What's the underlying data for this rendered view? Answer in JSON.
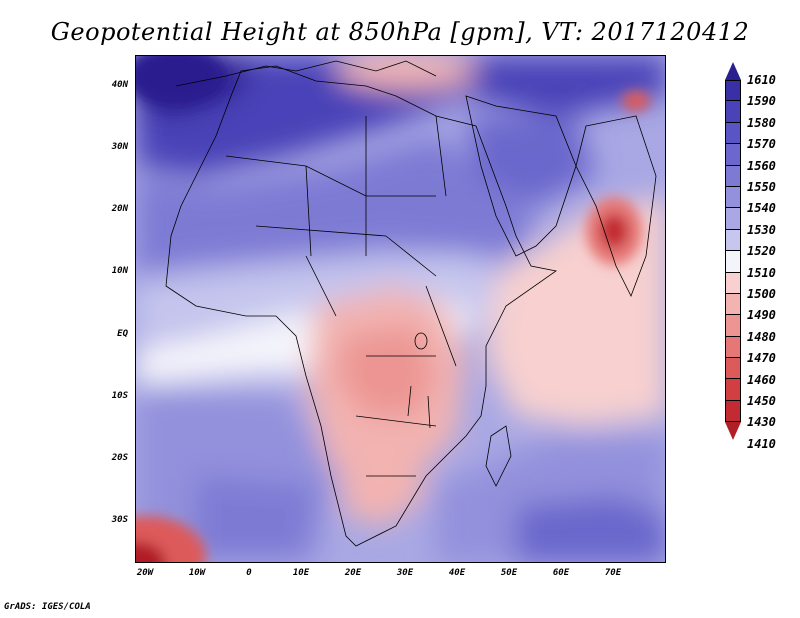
{
  "title": "Geopotential Height at 850hPa [gpm], VT: 2017120412",
  "credit": "GrADS: IGES/COLA",
  "map": {
    "lat_labels": [
      "40N",
      "30N",
      "20N",
      "10N",
      "EQ",
      "10S",
      "20S",
      "30S"
    ],
    "lon_labels": [
      "20W",
      "10W",
      "0",
      "10E",
      "20E",
      "30E",
      "40E",
      "50E",
      "60E",
      "70E"
    ]
  },
  "colorbar": {
    "levels": [
      "1610",
      "1590",
      "1580",
      "1570",
      "1560",
      "1550",
      "1540",
      "1530",
      "1520",
      "1510",
      "1500",
      "1490",
      "1480",
      "1470",
      "1460",
      "1450",
      "1430",
      "1410"
    ],
    "colors": [
      "#2a1f8f",
      "#3a30a6",
      "#4a43b8",
      "#5a55c4",
      "#6b67cc",
      "#7d7ad4",
      "#9391dc",
      "#a9a8e4",
      "#c6c6ee",
      "#f4f4fb",
      "#f7d0cf",
      "#f2b3b1",
      "#ec9593",
      "#e57776",
      "#dd5a5a",
      "#d13f42",
      "#c22b31",
      "#b01f25"
    ]
  },
  "features": {
    "low_center": "low-pressure-center-arabian-sea",
    "high_center": "high-pressure-north-atlantic"
  }
}
